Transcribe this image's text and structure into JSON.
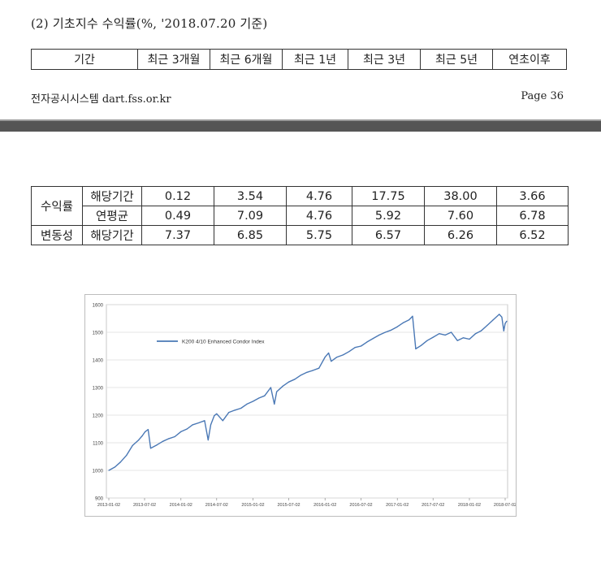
{
  "section_title": "(2) 기초지수 수익률(%, '2018.07.20 기준)",
  "period_table": {
    "cells": [
      "기간",
      "최근 3개월",
      "최근 6개월",
      "최근 1년",
      "최근 3년",
      "최근 5년",
      "연초이후"
    ]
  },
  "footer": {
    "left": "전자공시시스템 dart.fss.or.kr",
    "right": "Page 36"
  },
  "returns_table": {
    "group_return": "수익률",
    "group_vol": "변동성",
    "rows": [
      {
        "label": "해당기간",
        "values": [
          "0.12",
          "3.54",
          "4.76",
          "17.75",
          "38.00",
          "3.66"
        ]
      },
      {
        "label": "연평균",
        "values": [
          "0.49",
          "7.09",
          "4.76",
          "5.92",
          "7.60",
          "6.78"
        ]
      },
      {
        "label": "해당기간",
        "values": [
          "7.37",
          "6.85",
          "5.75",
          "6.57",
          "6.26",
          "6.52"
        ]
      }
    ]
  },
  "chart_data": {
    "type": "line",
    "title": "",
    "xlabel": "",
    "ylabel": "",
    "ylim": [
      900,
      1600
    ],
    "yticks": [
      "900",
      "1000",
      "1100",
      "1200",
      "1300",
      "1400",
      "1500",
      "1600"
    ],
    "xticks": [
      "2013-01-02",
      "2013-07-02",
      "2014-01-02",
      "2014-07-02",
      "2015-01-02",
      "2015-07-02",
      "2016-01-02",
      "2016-07-02",
      "2017-01-02",
      "2017-07-02",
      "2018-01-02",
      "2018-07-02"
    ],
    "grid": true,
    "legend": "top-left",
    "color": "#4a78b5",
    "series": [
      {
        "name": "K200 4/10 Enhanced Condor Index",
        "points": [
          [
            "2013-01-02",
            1000
          ],
          [
            "2013-02-02",
            1012
          ],
          [
            "2013-03-02",
            1030
          ],
          [
            "2013-04-02",
            1055
          ],
          [
            "2013-05-02",
            1090
          ],
          [
            "2013-06-02",
            1110
          ],
          [
            "2013-06-20",
            1125
          ],
          [
            "2013-07-05",
            1140
          ],
          [
            "2013-07-20",
            1148
          ],
          [
            "2013-08-02",
            1080
          ],
          [
            "2013-09-02",
            1092
          ],
          [
            "2013-10-02",
            1105
          ],
          [
            "2013-11-02",
            1115
          ],
          [
            "2013-12-02",
            1122
          ],
          [
            "2014-01-02",
            1140
          ],
          [
            "2014-02-02",
            1150
          ],
          [
            "2014-03-02",
            1165
          ],
          [
            "2014-04-02",
            1172
          ],
          [
            "2014-05-02",
            1180
          ],
          [
            "2014-05-20",
            1110
          ],
          [
            "2014-06-02",
            1165
          ],
          [
            "2014-06-20",
            1198
          ],
          [
            "2014-07-02",
            1205
          ],
          [
            "2014-08-02",
            1180
          ],
          [
            "2014-09-02",
            1210
          ],
          [
            "2014-10-02",
            1218
          ],
          [
            "2014-11-02",
            1225
          ],
          [
            "2014-12-02",
            1240
          ],
          [
            "2015-01-02",
            1250
          ],
          [
            "2015-02-02",
            1262
          ],
          [
            "2015-03-02",
            1270
          ],
          [
            "2015-04-02",
            1300
          ],
          [
            "2015-04-20",
            1240
          ],
          [
            "2015-05-02",
            1285
          ],
          [
            "2015-06-02",
            1305
          ],
          [
            "2015-07-02",
            1320
          ],
          [
            "2015-08-02",
            1330
          ],
          [
            "2015-09-02",
            1345
          ],
          [
            "2015-10-02",
            1355
          ],
          [
            "2015-11-02",
            1362
          ],
          [
            "2015-12-02",
            1370
          ],
          [
            "2016-01-02",
            1410
          ],
          [
            "2016-01-20",
            1425
          ],
          [
            "2016-02-02",
            1395
          ],
          [
            "2016-03-02",
            1410
          ],
          [
            "2016-04-02",
            1418
          ],
          [
            "2016-05-02",
            1430
          ],
          [
            "2016-06-02",
            1445
          ],
          [
            "2016-07-02",
            1450
          ],
          [
            "2016-08-02",
            1465
          ],
          [
            "2016-09-02",
            1478
          ],
          [
            "2016-10-02",
            1490
          ],
          [
            "2016-11-02",
            1500
          ],
          [
            "2016-12-02",
            1508
          ],
          [
            "2017-01-02",
            1520
          ],
          [
            "2017-02-02",
            1535
          ],
          [
            "2017-03-02",
            1545
          ],
          [
            "2017-03-20",
            1558
          ],
          [
            "2017-04-05",
            1440
          ],
          [
            "2017-05-02",
            1452
          ],
          [
            "2017-06-02",
            1470
          ],
          [
            "2017-07-02",
            1482
          ],
          [
            "2017-08-02",
            1495
          ],
          [
            "2017-09-02",
            1490
          ],
          [
            "2017-10-02",
            1500
          ],
          [
            "2017-11-02",
            1470
          ],
          [
            "2017-12-02",
            1480
          ],
          [
            "2018-01-02",
            1475
          ],
          [
            "2018-02-02",
            1495
          ],
          [
            "2018-03-02",
            1505
          ],
          [
            "2018-04-02",
            1525
          ],
          [
            "2018-05-02",
            1545
          ],
          [
            "2018-06-02",
            1565
          ],
          [
            "2018-06-15",
            1555
          ],
          [
            "2018-06-25",
            1505
          ],
          [
            "2018-07-02",
            1532
          ],
          [
            "2018-07-10",
            1540
          ]
        ]
      }
    ]
  }
}
